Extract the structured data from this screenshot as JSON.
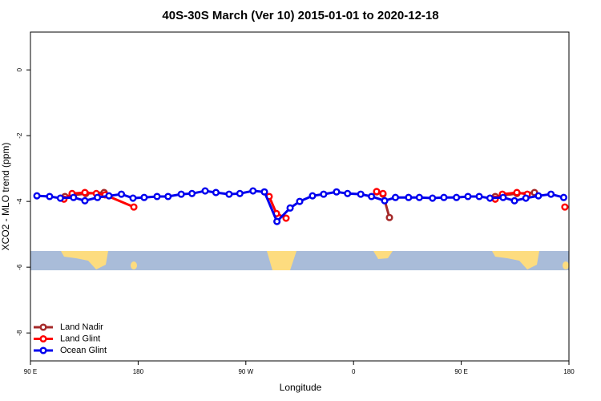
{
  "chart_data": {
    "type": "line",
    "title": "40S-30S March (Ver 10)   2015-01-01 to 2020-12-18",
    "x_label": "Longitude",
    "y_label": "XCO2 - MLO trend (ppm)",
    "xlim": [
      90,
      540
    ],
    "xticks": [
      {
        "value": 90,
        "label": "90 E"
      },
      180,
      {
        "value": 270,
        "label": "90 W"
      },
      {
        "value": 360,
        "label": "0"
      },
      {
        "value": 450,
        "label": "90 E"
      },
      {
        "value": 540,
        "label": "180"
      }
    ],
    "ylim": [
      -8.85,
      1.15
    ],
    "yticks": [
      0,
      -2,
      -4,
      -6,
      -8
    ],
    "legend": "bottomleft",
    "series": [
      {
        "name": "Land Nadir",
        "color": "#a52a2a",
        "x": [
          118.8,
          136.2,
          151.6,
          null,
          379.3,
          384.6,
          390,
          null,
          478.4,
          496.5,
          511.2
        ],
        "values": [
          -3.85,
          -3.76,
          -3.73,
          null,
          -3.71,
          -3.78,
          -4.49,
          null,
          -3.85,
          -3.76,
          -3.73
        ]
      },
      {
        "name": "Land Glint",
        "color": "#ff0000",
        "x": [
          118,
          124.8,
          135.5,
          145,
          152.3,
          176.4,
          null,
          289.5,
          295.6,
          303.6,
          null,
          379.3,
          384.6,
          null,
          478.4,
          484.4,
          496.5,
          505.2,
          null,
          536.6
        ],
        "values": [
          -3.93,
          -3.76,
          -3.73,
          -3.76,
          -3.8,
          -4.17,
          null,
          -3.85,
          -4.37,
          -4.51,
          null,
          -3.7,
          -3.76,
          null,
          -3.93,
          -3.78,
          -3.73,
          -3.78,
          null,
          -4.17
        ]
      },
      {
        "name": "Ocean Glint",
        "color": "#0000ee",
        "x": [
          95.4,
          106,
          115,
          126,
          135.5,
          146,
          155.6,
          166,
          175.7,
          185,
          195.8,
          205,
          216,
          225,
          236,
          245,
          256,
          265,
          276,
          285.5,
          296,
          307,
          315,
          325.7,
          335,
          345.8,
          355,
          366,
          375,
          386,
          395,
          406,
          415,
          426,
          435.5,
          446,
          455.6,
          465,
          474,
          485,
          494.5,
          504,
          514.5,
          525,
          535.6
        ],
        "values": [
          -3.83,
          -3.85,
          -3.9,
          -3.88,
          -3.98,
          -3.88,
          -3.83,
          -3.78,
          -3.9,
          -3.88,
          -3.85,
          -3.85,
          -3.78,
          -3.76,
          -3.68,
          -3.73,
          -3.78,
          -3.76,
          -3.68,
          -3.71,
          -4.61,
          -4.2,
          -4.0,
          -3.83,
          -3.78,
          -3.71,
          -3.76,
          -3.78,
          -3.85,
          -3.98,
          -3.88,
          -3.88,
          -3.88,
          -3.9,
          -3.88,
          -3.88,
          -3.85,
          -3.85,
          -3.9,
          -3.88,
          -3.98,
          -3.9,
          -3.83,
          -3.78,
          -3.88
        ]
      }
    ]
  }
}
